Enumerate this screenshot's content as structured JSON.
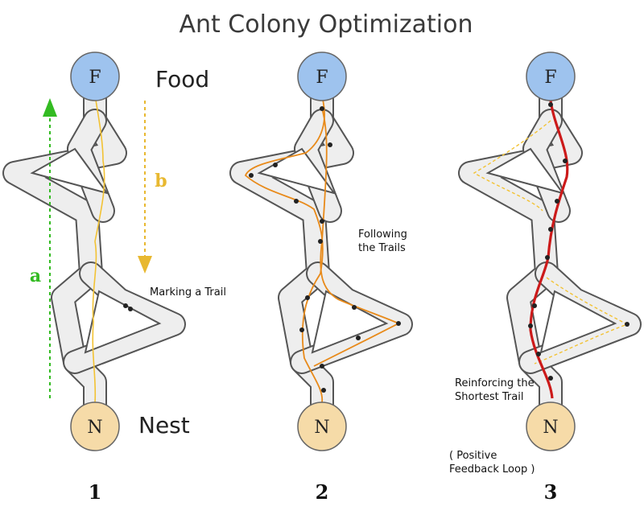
{
  "title": "Ant Colony Optimization",
  "nodes": {
    "food": "F",
    "nest": "N"
  },
  "labels": {
    "food": "Food",
    "nest": "Nest",
    "arrow_a": "a",
    "arrow_b": "b",
    "marking": "Marking a Trail",
    "following_1": "Following",
    "following_2": "the Trails",
    "reinforcing_1": "Reinforcing the",
    "reinforcing_2": "Shortest Trail",
    "feedback_1": "( Positive",
    "feedback_2": "Feedback Loop )"
  },
  "panels": [
    "1",
    "2",
    "3"
  ],
  "colors": {
    "food_node": "#9ec3ee",
    "nest_node": "#f6dba8",
    "path_fill": "#eeeeee",
    "path_edge": "#555555",
    "trail_orange": "#e88a1a",
    "trail_yellow": "#f2c233",
    "trail_red": "#cc1a1a",
    "arrow_green": "#33bb22",
    "arrow_yellow": "#e8b830"
  }
}
